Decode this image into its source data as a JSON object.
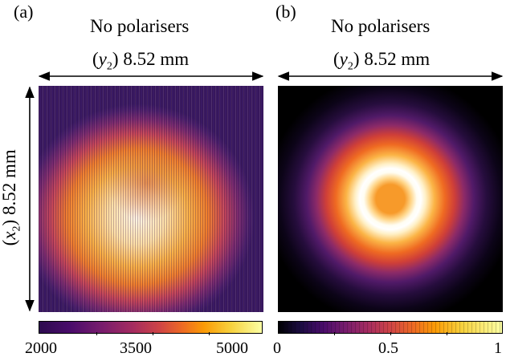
{
  "panels": [
    {
      "label": "(a)",
      "title": "No polarisers",
      "width_axis": {
        "variable": "y",
        "subscript": "2",
        "value": "8.52 mm"
      },
      "height_axis": {
        "variable": "x",
        "subscript": "2",
        "value": "8.52 mm"
      },
      "colorbar_ticks": [
        "2000",
        "3500",
        "5000"
      ]
    },
    {
      "label": "(b)",
      "title": "No polarisers",
      "width_axis": {
        "variable": "y",
        "subscript": "2",
        "value": "8.52 mm"
      },
      "colorbar_ticks": [
        "0",
        "0.5",
        "1"
      ]
    }
  ],
  "colors": {
    "colormap": [
      "#000004",
      "#4a0c6b",
      "#a52c60",
      "#ed6925",
      "#fb9b06",
      "#fcffa4"
    ]
  }
}
